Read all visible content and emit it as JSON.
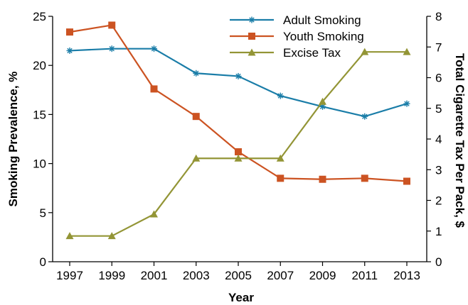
{
  "chart_data": {
    "type": "line",
    "title": "",
    "xlabel": "Year",
    "ylabel": "Smoking Prevalence, %",
    "y2label": "Total Cigarette Tax Per Pack, $",
    "x": [
      "1997",
      "1999",
      "2001",
      "2003",
      "2005",
      "2007",
      "2009",
      "2011",
      "2013"
    ],
    "ylim": [
      0,
      25
    ],
    "y2lim": [
      0,
      8
    ],
    "yticks": [
      "0",
      "5",
      "10",
      "15",
      "20",
      "25"
    ],
    "y2ticks": [
      "0",
      "1",
      "2",
      "3",
      "4",
      "5",
      "6",
      "7",
      "8"
    ],
    "grid": false,
    "legend_position": "top-center",
    "series": [
      {
        "name": "Adult Smoking",
        "axis": "left",
        "color": "#1a7da8",
        "marker": "star",
        "values": [
          21.5,
          21.7,
          21.7,
          19.2,
          18.9,
          16.9,
          15.8,
          14.8,
          16.1
        ]
      },
      {
        "name": "Youth Smoking",
        "axis": "left",
        "color": "#cc5322",
        "marker": "square",
        "values": [
          23.4,
          24.1,
          17.6,
          14.8,
          11.2,
          8.5,
          8.4,
          8.5,
          8.2
        ]
      },
      {
        "name": "Excise Tax",
        "axis": "right",
        "color": "#939536",
        "marker": "triangle",
        "values": [
          0.84,
          0.84,
          1.55,
          3.37,
          3.37,
          3.37,
          5.22,
          6.84,
          6.84
        ]
      }
    ]
  }
}
